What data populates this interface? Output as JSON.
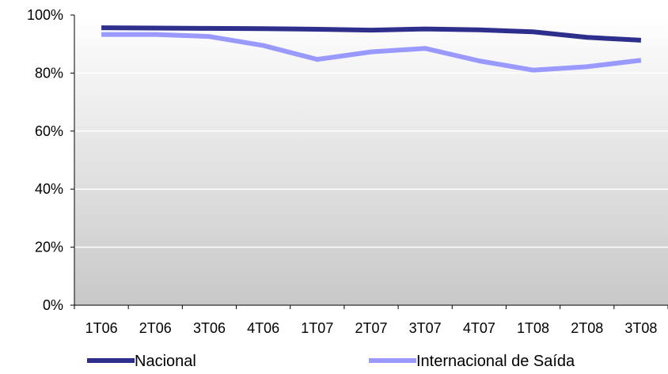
{
  "chart_data": {
    "type": "line",
    "title": "",
    "xlabel": "",
    "ylabel": "",
    "categories": [
      "1T06",
      "2T06",
      "3T06",
      "4T06",
      "1T07",
      "2T07",
      "3T07",
      "4T07",
      "1T08",
      "2T08",
      "3T08"
    ],
    "ylim": [
      0,
      100
    ],
    "yticks": [
      0,
      20,
      40,
      60,
      80,
      100
    ],
    "ytick_labels": [
      "0%",
      "20%",
      "40%",
      "60%",
      "80%",
      "100%"
    ],
    "grid": true,
    "legend_position": "bottom",
    "series": [
      {
        "name": "Nacional",
        "color": "#2E2E8C",
        "values": [
          95.6,
          95.5,
          95.4,
          95.3,
          95.1,
          94.8,
          95.2,
          94.9,
          94.2,
          92.3,
          91.3
        ]
      },
      {
        "name": "Internacional de Saída",
        "color": "#9999FF",
        "values": [
          93.3,
          93.3,
          92.6,
          89.5,
          84.7,
          87.3,
          88.5,
          84.2,
          81.0,
          82.2,
          84.4
        ]
      }
    ],
    "background_gradient": [
      "#ffffff",
      "#c8c8c8"
    ]
  }
}
